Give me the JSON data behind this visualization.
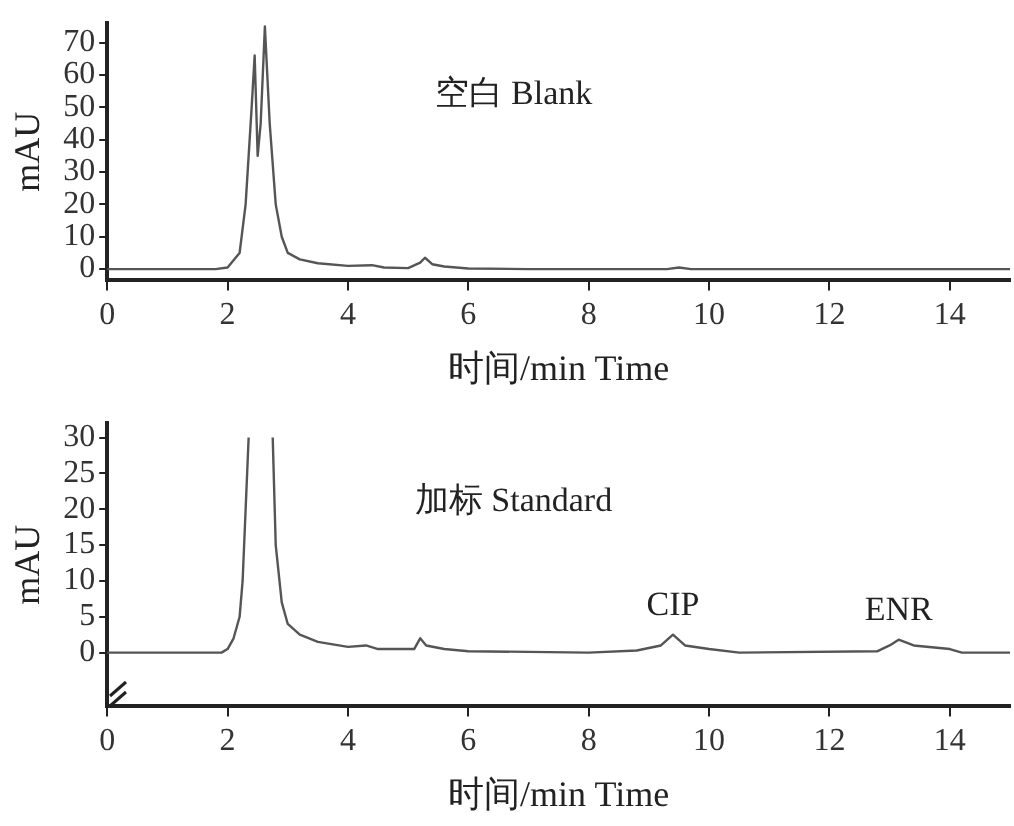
{
  "chart_data": [
    {
      "type": "line",
      "xlabel": "时间/min Time",
      "ylabel": "mAU",
      "xlim": [
        0,
        15
      ],
      "xticks": [
        0,
        2,
        4,
        6,
        8,
        10,
        12,
        14
      ],
      "ylim": [
        -3.5,
        76
      ],
      "yticks": [
        0,
        10,
        20,
        30,
        40,
        50,
        60,
        70
      ],
      "grid": false,
      "legend": false,
      "marker": "none",
      "line_style": "solid",
      "annotations": [
        "空白 Blank"
      ],
      "series": [
        {
          "color": "#555555",
          "x": [
            0,
            1.8,
            2.0,
            2.2,
            2.3,
            2.4,
            2.45,
            2.5,
            2.55,
            2.62,
            2.7,
            2.8,
            2.9,
            3.0,
            3.2,
            3.5,
            4.0,
            4.4,
            4.6,
            5.0,
            5.2,
            5.28,
            5.4,
            5.6,
            6.0,
            7.0,
            9.3,
            9.5,
            9.7,
            15
          ],
          "values": [
            0,
            0,
            0.5,
            5,
            20,
            50,
            66,
            35,
            45,
            75,
            45,
            20,
            10,
            5,
            3,
            1.8,
            1,
            1.2,
            0.5,
            0.3,
            2,
            3.5,
            1.5,
            0.8,
            0.2,
            0,
            0,
            0.5,
            0,
            0
          ]
        }
      ]
    },
    {
      "type": "line",
      "xlabel": "时间/min Time",
      "ylabel": "mAU",
      "xlim": [
        0,
        15
      ],
      "xticks": [
        0,
        2,
        4,
        6,
        8,
        10,
        12,
        14
      ],
      "ylim": [
        -7.5,
        32
      ],
      "yticks": [
        0,
        5,
        10,
        15,
        20,
        25,
        30
      ],
      "grid": false,
      "legend": false,
      "marker": "none",
      "line_style": "solid",
      "annotations": [
        "加标 Standard",
        {
          "text": "CIP",
          "x": 9.4,
          "y": 2.5
        },
        {
          "text": "ENR",
          "x": 13.15,
          "y": 1.8
        }
      ],
      "series": [
        {
          "color": "#555555",
          "x": [
            0,
            1.9,
            2.0,
            2.1,
            2.2,
            2.25,
            2.3,
            2.35,
            2.4,
            2.7,
            2.75,
            2.8,
            2.9,
            3.0,
            3.2,
            3.5,
            4.0,
            4.3,
            4.5,
            5.1,
            5.2,
            5.3,
            5.6,
            6.0,
            8.0,
            8.8,
            9.2,
            9.4,
            9.6,
            10.0,
            10.5,
            12.8,
            13.0,
            13.15,
            13.4,
            14.0,
            14.2,
            15
          ],
          "values": [
            0,
            0,
            0.5,
            2,
            5,
            10,
            20,
            30,
            null,
            null,
            30,
            15,
            7,
            4,
            2.5,
            1.5,
            0.8,
            1,
            0.5,
            0.5,
            2,
            1,
            0.5,
            0.2,
            0,
            0.3,
            1,
            2.5,
            1,
            0.5,
            0,
            0.2,
            1,
            1.8,
            1,
            0.5,
            0,
            0
          ]
        }
      ]
    }
  ]
}
